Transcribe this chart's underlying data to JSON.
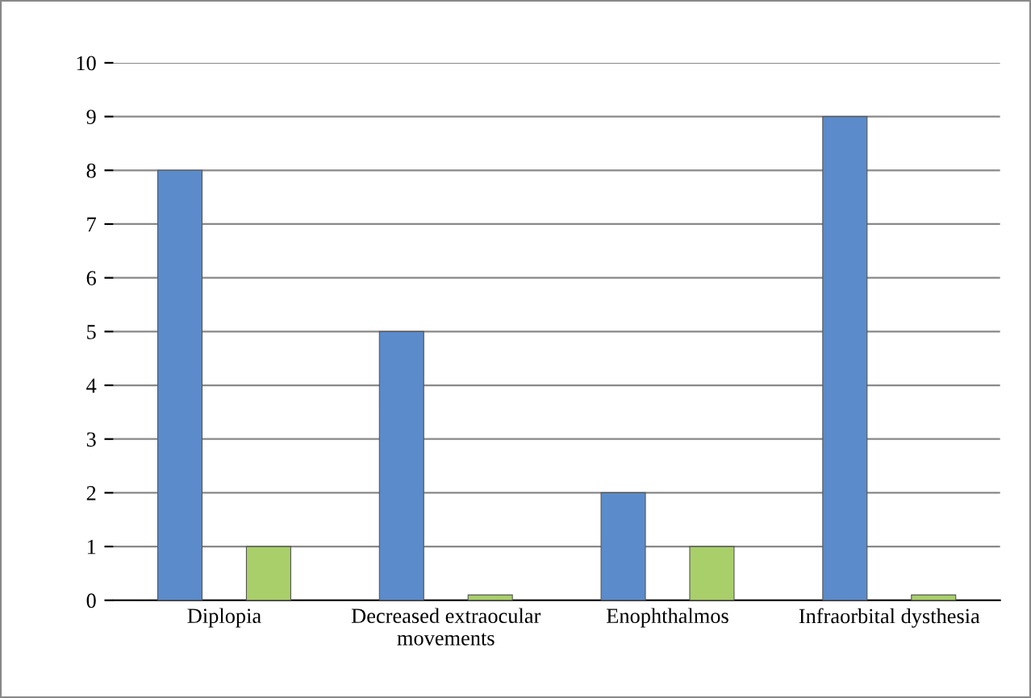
{
  "chart_data": {
    "type": "bar",
    "categories": [
      "Diplopia",
      "Decreased extraocular\nmovements",
      "Enophthalmos",
      "Infraorbital dysthesia"
    ],
    "series": [
      {
        "color": "#5b8bcb",
        "values": [
          8,
          5,
          2,
          9
        ]
      },
      {
        "color": "#a9cf6a",
        "values": [
          1,
          0.1,
          1,
          0.1
        ]
      }
    ],
    "ylim": [
      0,
      10
    ],
    "yticks": [
      0,
      1,
      2,
      3,
      4,
      5,
      6,
      7,
      8,
      9,
      10
    ],
    "grid": "y"
  }
}
